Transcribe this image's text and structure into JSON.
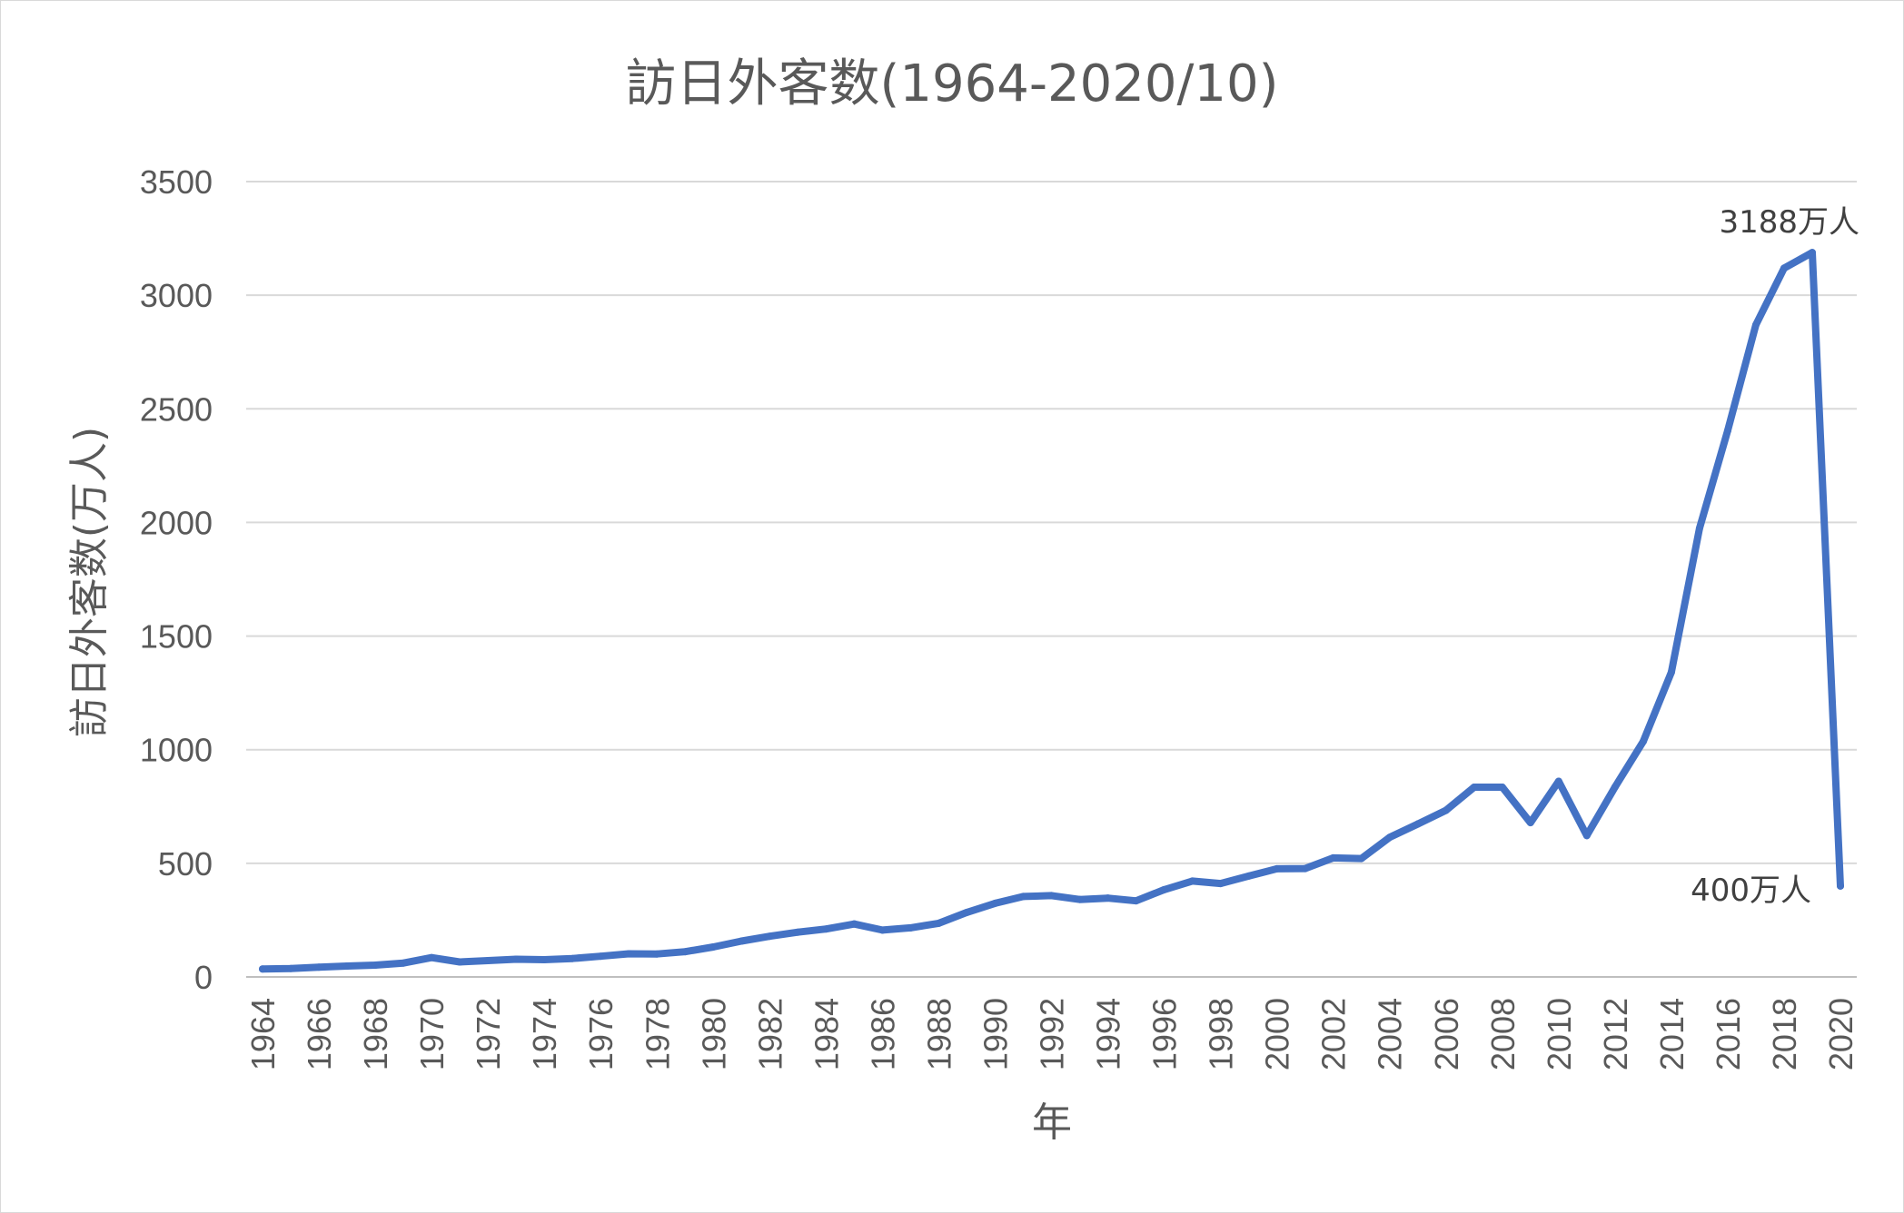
{
  "chart_data": {
    "type": "line",
    "title": "訪日外客数(1964-2020/10)",
    "xlabel": "年",
    "ylabel": "訪日外客数(万人)",
    "ylim": [
      0,
      3500
    ],
    "yticks": [
      0,
      500,
      1000,
      1500,
      2000,
      2500,
      3000,
      3500
    ],
    "x": [
      1964,
      1965,
      1966,
      1967,
      1968,
      1969,
      1970,
      1971,
      1972,
      1973,
      1974,
      1975,
      1976,
      1977,
      1978,
      1979,
      1980,
      1981,
      1982,
      1983,
      1984,
      1985,
      1986,
      1987,
      1988,
      1989,
      1990,
      1991,
      1992,
      1993,
      1994,
      1995,
      1996,
      1997,
      1998,
      1999,
      2000,
      2001,
      2002,
      2003,
      2004,
      2005,
      2006,
      2007,
      2008,
      2009,
      2010,
      2011,
      2012,
      2013,
      2014,
      2015,
      2016,
      2017,
      2018,
      2019,
      2020
    ],
    "xtick_labels": [
      "1964",
      "1966",
      "1968",
      "1970",
      "1972",
      "1974",
      "1976",
      "1978",
      "1980",
      "1982",
      "1984",
      "1986",
      "1988",
      "1990",
      "1992",
      "1994",
      "1996",
      "1998",
      "2000",
      "2002",
      "2004",
      "2006",
      "2008",
      "2010",
      "2012",
      "2014",
      "2016",
      "2018",
      "2020"
    ],
    "series": [
      {
        "values": [
          35,
          37,
          43,
          48,
          52,
          61,
          85,
          66,
          72,
          78,
          76,
          81,
          91,
          102,
          101,
          111,
          132,
          158,
          179,
          197,
          211,
          233,
          206,
          216,
          236,
          284,
          324,
          354,
          358,
          341,
          347,
          335,
          384,
          422,
          411,
          444,
          476,
          477,
          524,
          521,
          614,
          673,
          733,
          835,
          835,
          679,
          861,
          622,
          836,
          1036,
          1341,
          1974,
          2404,
          2869,
          3119,
          3188,
          400
        ]
      }
    ],
    "annotations": [
      {
        "text": "3188万人",
        "x": 2019,
        "y": 3188
      },
      {
        "text": "400万人",
        "x": 2020,
        "y": 400
      }
    ],
    "colors": {
      "series": "#4472c4",
      "grid": "#d9d9d9",
      "text": "#595959"
    },
    "grid": true,
    "legend": "none"
  }
}
